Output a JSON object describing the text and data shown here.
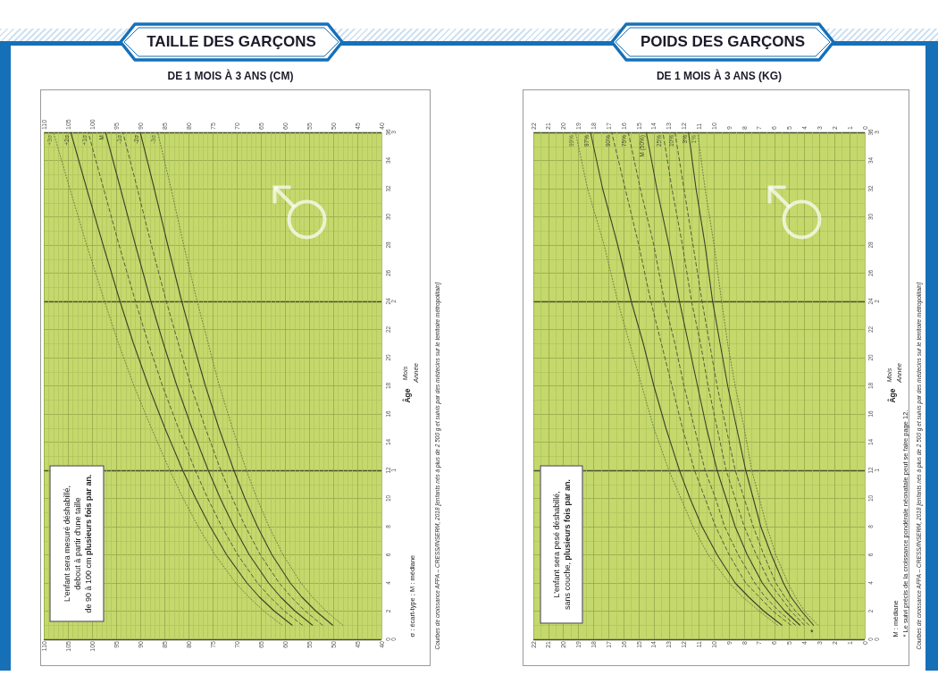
{
  "chart_data": [
    {
      "type": "line",
      "title": "TAILLE DES GARÇONS",
      "subtitle": "DE 1 MOIS À 3 ANS (CM)",
      "y2label": "Année",
      "xlim": [
        110,
        40
      ],
      "xticks": [
        110,
        {
          "value": 109,
          "label": null
        },
        {
          "value": 108,
          "label": null
        },
        {
          "value": 107,
          "label": null
        },
        {
          "value": 106,
          "label": null
        },
        105,
        {
          "value": 104,
          "label": null
        },
        {
          "value": 103,
          "label": null
        },
        {
          "value": 102,
          "label": null
        },
        {
          "value": 101,
          "label": null
        },
        100,
        {
          "value": 99,
          "label": null
        },
        {
          "value": 98,
          "label": null
        },
        {
          "value": 97,
          "label": null
        },
        {
          "value": 96,
          "label": null
        },
        95,
        {
          "value": 94,
          "label": null
        },
        {
          "value": 93,
          "label": null
        },
        {
          "value": 92,
          "label": null
        },
        {
          "value": 91,
          "label": null
        },
        90,
        {
          "value": 89,
          "label": null
        },
        {
          "value": 88,
          "label": null
        },
        {
          "value": 87,
          "label": null
        },
        {
          "value": 86,
          "label": null
        },
        85,
        {
          "value": 84,
          "label": null
        },
        {
          "value": 83,
          "label": null
        },
        {
          "value": 82,
          "label": null
        },
        {
          "value": 81,
          "label": null
        },
        80,
        {
          "value": 79,
          "label": null
        },
        {
          "value": 78,
          "label": null
        },
        {
          "value": 77,
          "label": null
        },
        {
          "value": 76,
          "label": null
        },
        75,
        {
          "value": 74,
          "label": null
        },
        {
          "value": 73,
          "label": null
        },
        {
          "value": 72,
          "label": null
        },
        {
          "value": 71,
          "label": null
        },
        70,
        {
          "value": 69,
          "label": null
        },
        {
          "value": 68,
          "label": null
        },
        {
          "value": 67,
          "label": null
        },
        {
          "value": 66,
          "label": null
        },
        65,
        {
          "value": 64,
          "label": null
        },
        {
          "value": 63,
          "label": null
        },
        {
          "value": 62,
          "label": null
        },
        {
          "value": 61,
          "label": null
        },
        60,
        {
          "value": 59,
          "label": null
        },
        {
          "value": 58,
          "label": null
        },
        {
          "value": 57,
          "label": null
        },
        {
          "value": 56,
          "label": null
        },
        55,
        {
          "value": 54,
          "label": null
        },
        {
          "value": 53,
          "label": null
        },
        {
          "value": 52,
          "label": null
        },
        {
          "value": 51,
          "label": null
        },
        50,
        {
          "value": 49,
          "label": null
        },
        {
          "value": 48,
          "label": null
        },
        {
          "value": 47,
          "label": null
        },
        {
          "value": 46,
          "label": null
        },
        45,
        {
          "value": 44,
          "label": null
        },
        {
          "value": 43,
          "label": null
        },
        {
          "value": 42,
          "label": null
        },
        {
          "value": 41,
          "label": null
        },
        40
      ],
      "x2lim": [
        110,
        40
      ],
      "x2ticks": [
        110,
        105,
        100,
        95,
        90,
        85,
        80,
        75,
        70,
        65,
        60,
        55,
        50,
        45,
        40
      ],
      "ylim": [
        0,
        36
      ],
      "yticks": [
        0,
        {
          "value": 1,
          "label": null
        },
        2,
        {
          "value": 3,
          "label": null
        },
        4,
        {
          "value": 5,
          "label": null
        },
        6,
        {
          "value": 7,
          "label": null
        },
        8,
        {
          "value": 9,
          "label": null
        },
        10,
        {
          "value": 11,
          "label": null
        },
        12,
        {
          "value": 13,
          "label": null
        },
        14,
        {
          "value": 15,
          "label": null
        },
        16,
        {
          "value": 17,
          "label": null
        },
        18,
        {
          "value": 19,
          "label": null
        },
        20,
        {
          "value": 21,
          "label": null
        },
        22,
        {
          "value": 23,
          "label": null
        },
        24,
        {
          "value": 25,
          "label": null
        },
        26,
        {
          "value": 27,
          "label": null
        },
        28,
        {
          "value": 29,
          "label": null
        },
        30,
        {
          "value": 31,
          "label": null
        },
        32,
        {
          "value": 33,
          "label": null
        },
        34,
        {
          "value": 35,
          "label": null
        },
        36
      ],
      "y2lim": [
        0,
        3
      ],
      "y2ticks": [
        0,
        1,
        2,
        3
      ],
      "grid": true,
      "series": [
        {
          "name": "+3σ",
          "color": "#5f7440",
          "line_style": "dotted",
          "x": [
            60.6,
            64.4,
            67.5,
            70.2,
            74.5,
            78.0,
            81.1,
            83.9,
            87.7,
            91.3,
            94.5,
            97.4,
            101.1,
            104.6,
            108.0
          ],
          "values": [
            1,
            2,
            3,
            4,
            6,
            8,
            10,
            12,
            15,
            18,
            21,
            24,
            28,
            32,
            36
          ]
        },
        {
          "name": "+2σ",
          "color": "#3b4228",
          "line_style": "solid",
          "x": [
            58.5,
            62.2,
            65.3,
            67.9,
            72.1,
            75.5,
            78.5,
            81.2,
            84.9,
            88.3,
            91.4,
            94.2,
            97.7,
            101.1,
            104.4
          ],
          "values": [
            1,
            2,
            3,
            4,
            6,
            8,
            10,
            12,
            15,
            18,
            21,
            24,
            28,
            32,
            36
          ]
        },
        {
          "name": "+1σ",
          "color": "#4a5236",
          "line_style": "dashed",
          "x": [
            56.4,
            60.1,
            63.1,
            65.7,
            69.8,
            73.1,
            76.0,
            78.6,
            82.1,
            85.4,
            88.3,
            91.0,
            94.4,
            97.6,
            100.8
          ],
          "values": [
            1,
            2,
            3,
            4,
            6,
            8,
            10,
            12,
            15,
            18,
            21,
            24,
            28,
            32,
            36
          ]
        },
        {
          "name": "M",
          "color": "#3b4228",
          "line_style": "solid",
          "x": [
            54.3,
            57.9,
            60.9,
            63.4,
            67.4,
            70.6,
            73.4,
            75.9,
            79.3,
            82.4,
            85.2,
            87.8,
            91.0,
            94.1,
            97.2
          ],
          "values": [
            1,
            2,
            3,
            4,
            6,
            8,
            10,
            12,
            15,
            18,
            21,
            24,
            28,
            32,
            36
          ]
        },
        {
          "name": "-1σ",
          "color": "#4a5236",
          "line_style": "dashed",
          "x": [
            52.2,
            55.8,
            58.7,
            61.2,
            65.1,
            68.2,
            70.9,
            73.3,
            76.5,
            79.5,
            82.1,
            84.6,
            87.7,
            90.6,
            93.6
          ],
          "values": [
            1,
            2,
            3,
            4,
            6,
            8,
            10,
            12,
            15,
            18,
            21,
            24,
            28,
            32,
            36
          ]
        },
        {
          "name": "-2σ",
          "color": "#3b4228",
          "line_style": "solid",
          "x": [
            50.1,
            53.6,
            56.5,
            58.9,
            62.7,
            65.7,
            68.3,
            70.6,
            73.7,
            76.5,
            79.0,
            81.4,
            84.3,
            87.1,
            90.0
          ],
          "values": [
            1,
            2,
            3,
            4,
            6,
            8,
            10,
            12,
            15,
            18,
            21,
            24,
            28,
            32,
            36
          ]
        },
        {
          "name": "-3σ",
          "color": "#5f7440",
          "line_style": "dotted",
          "x": [
            48.0,
            51.5,
            54.3,
            56.7,
            60.4,
            63.3,
            65.8,
            68.0,
            70.9,
            73.6,
            75.9,
            78.2,
            81.0,
            83.6,
            86.4
          ],
          "values": [
            1,
            2,
            3,
            4,
            6,
            8,
            10,
            12,
            15,
            18,
            21,
            24,
            28,
            32,
            36
          ]
        }
      ],
      "annotations": [
        "Âge",
        "Mois",
        "L'enfant sera mesuré déshabillé,",
        "debout à partir d'une taille",
        "de 90 à 100 cm",
        "plusieurs fois par an.",
        "σ : écart-type ; M : médiane",
        "Courbes de croissance AFPA – CRESS/INSERM, 2018 [enfants nés à plus de 2 500 g et suivis par des médecins sur le territoire métropolitain]"
      ]
    },
    {
      "type": "line",
      "title": "POIDS DES GARÇONS",
      "subtitle": "DE 1 MOIS À 3 ANS (KG)",
      "y2label": "Année",
      "xlim": [
        22,
        0
      ],
      "xticks": [
        22,
        {
          "value": 21.5,
          "label": null
        },
        21,
        {
          "value": 20.5,
          "label": null
        },
        20,
        {
          "value": 19.5,
          "label": null
        },
        19,
        {
          "value": 18.5,
          "label": null
        },
        18,
        {
          "value": 17.5,
          "label": null
        },
        17,
        {
          "value": 16.5,
          "label": null
        },
        16,
        {
          "value": 15.5,
          "label": null
        },
        15,
        {
          "value": 14.5,
          "label": null
        },
        14,
        {
          "value": 13.5,
          "label": null
        },
        13,
        {
          "value": 12.5,
          "label": null
        },
        12,
        {
          "value": 11.5,
          "label": null
        },
        11,
        {
          "value": 10.5,
          "label": null
        },
        10,
        {
          "value": 9.5,
          "label": null
        },
        9,
        {
          "value": 8.5,
          "label": null
        },
        8,
        {
          "value": 7.5,
          "label": null
        },
        7,
        {
          "value": 6.5,
          "label": null
        },
        6,
        {
          "value": 5.5,
          "label": null
        },
        5,
        {
          "value": 4.5,
          "label": null
        },
        4,
        {
          "value": 3.5,
          "label": null
        },
        3,
        {
          "value": 2.5,
          "label": null
        },
        2,
        {
          "value": 1.5,
          "label": null
        },
        1,
        {
          "value": 0.5,
          "label": null
        },
        0
      ],
      "x2lim": [
        22,
        0
      ],
      "x2ticks": [
        22,
        21,
        20,
        19,
        18,
        17,
        16,
        15,
        14,
        13,
        12,
        11,
        10,
        9,
        8,
        7,
        6,
        5,
        4,
        3,
        2,
        1,
        0
      ],
      "ylim": [
        0,
        36
      ],
      "yticks": [
        0,
        {
          "value": 1,
          "label": null
        },
        2,
        {
          "value": 3,
          "label": null
        },
        4,
        {
          "value": 5,
          "label": null
        },
        6,
        {
          "value": 7,
          "label": null
        },
        8,
        {
          "value": 9,
          "label": null
        },
        10,
        {
          "value": 11,
          "label": null
        },
        12,
        {
          "value": 13,
          "label": null
        },
        14,
        {
          "value": 15,
          "label": null
        },
        16,
        {
          "value": 17,
          "label": null
        },
        18,
        {
          "value": 19,
          "label": null
        },
        20,
        {
          "value": 21,
          "label": null
        },
        22,
        {
          "value": 23,
          "label": null
        },
        24,
        {
          "value": 25,
          "label": null
        },
        26,
        {
          "value": 27,
          "label": null
        },
        28,
        {
          "value": 29,
          "label": null
        },
        30,
        {
          "value": 31,
          "label": null
        },
        32,
        {
          "value": 33,
          "label": null
        },
        34,
        {
          "value": 35,
          "label": null
        },
        36
      ],
      "y2lim": [
        0,
        3
      ],
      "y2ticks": [
        0,
        1,
        2,
        3
      ],
      "grid": true,
      "series": [
        {
          "name": "99%",
          "color": "#5f7440",
          "line_style": "dotted",
          "x": [
            5.8,
            7.0,
            8.1,
            9.0,
            10.4,
            11.4,
            12.2,
            13.0,
            14.0,
            14.8,
            15.6,
            16.4,
            17.3,
            18.4,
            19.2
          ],
          "values": [
            1,
            2,
            3,
            4,
            6,
            8,
            10,
            12,
            15,
            18,
            21,
            24,
            28,
            32,
            36
          ]
        },
        {
          "name": "97%",
          "color": "#3b4228",
          "line_style": "solid",
          "x": [
            5.5,
            6.7,
            7.7,
            8.6,
            9.8,
            10.8,
            11.6,
            12.3,
            13.2,
            14.0,
            14.7,
            15.5,
            16.4,
            17.4,
            18.2
          ],
          "values": [
            1,
            2,
            3,
            4,
            6,
            8,
            10,
            12,
            15,
            18,
            21,
            24,
            28,
            32,
            36
          ]
        },
        {
          "name": "90%",
          "color": "#4a5236",
          "line_style": "dashed",
          "x": [
            4.9,
            6.1,
            7.0,
            7.9,
            9.0,
            9.9,
            10.6,
            11.3,
            12.1,
            12.8,
            13.5,
            14.2,
            15.0,
            15.9,
            16.8
          ],
          "values": [
            1,
            2,
            3,
            4,
            6,
            8,
            10,
            12,
            15,
            18,
            21,
            24,
            28,
            32,
            36
          ]
        },
        {
          "name": "75%",
          "color": "#4a5236",
          "line_style": "dashed",
          "x": [
            4.6,
            5.7,
            6.6,
            7.3,
            8.4,
            9.3,
            9.9,
            10.6,
            11.3,
            12.0,
            12.6,
            13.3,
            14.0,
            14.9,
            15.7
          ],
          "values": [
            1,
            2,
            3,
            4,
            6,
            8,
            10,
            12,
            15,
            18,
            21,
            24,
            28,
            32,
            36
          ]
        },
        {
          "name": "M (50%)",
          "color": "#3b4228",
          "line_style": "solid",
          "x": [
            4.3,
            5.3,
            6.1,
            6.8,
            7.8,
            8.6,
            9.2,
            9.8,
            10.5,
            11.1,
            11.7,
            12.3,
            13.0,
            13.8,
            14.5
          ],
          "values": [
            1,
            2,
            3,
            4,
            6,
            8,
            10,
            12,
            15,
            18,
            21,
            24,
            28,
            32,
            36
          ]
        },
        {
          "name": "25%",
          "color": "#4a5236",
          "line_style": "dashed",
          "x": [
            4.0,
            4.9,
            5.6,
            6.3,
            7.2,
            8.0,
            8.6,
            9.2,
            9.8,
            10.4,
            10.9,
            11.5,
            12.1,
            12.8,
            13.4
          ],
          "values": [
            1,
            2,
            3,
            4,
            6,
            8,
            10,
            12,
            15,
            18,
            21,
            24,
            28,
            32,
            36
          ]
        },
        {
          "name": "10%",
          "color": "#4a5236",
          "line_style": "dashed",
          "x": [
            3.7,
            4.6,
            5.3,
            5.9,
            6.7,
            7.4,
            8.0,
            8.6,
            9.2,
            9.8,
            10.3,
            10.8,
            11.4,
            12.0,
            12.6
          ],
          "values": [
            1,
            2,
            3,
            4,
            6,
            8,
            10,
            12,
            15,
            18,
            21,
            24,
            28,
            32,
            36
          ]
        },
        {
          "name": "3%",
          "color": "#3b4228",
          "line_style": "solid",
          "x": [
            3.4,
            4.2,
            4.9,
            5.4,
            6.2,
            6.9,
            7.4,
            7.9,
            8.5,
            9.1,
            9.6,
            10.1,
            10.6,
            11.2,
            11.7
          ],
          "values": [
            1,
            2,
            3,
            4,
            6,
            8,
            10,
            12,
            15,
            18,
            21,
            24,
            28,
            32,
            36
          ]
        },
        {
          "name": "1%",
          "color": "#5f7440",
          "line_style": "dotted",
          "x": [
            3.1,
            4.0,
            4.6,
            5.1,
            5.9,
            6.5,
            7.0,
            7.5,
            8.0,
            8.6,
            9.1,
            9.5,
            10.0,
            10.6,
            11.1
          ],
          "values": [
            1,
            2,
            3,
            4,
            6,
            8,
            10,
            12,
            15,
            18,
            21,
            24,
            28,
            32,
            36
          ]
        }
      ],
      "annotations": [
        "Âge",
        "Mois",
        "L'enfant sera pesé déshabillé,",
        "sans couche,",
        "plusieurs fois par an.",
        "M : médiane",
        "* Le suivi précis de la croissance pondérale néonatale peut se faire page 12.",
        "Courbes de croissance AFPA – CRESS/INSERM, 2018 [enfants nés à plus de 2 500 g et suivis par des médecins sur le territoire métropolitain]",
        "*"
      ]
    }
  ]
}
